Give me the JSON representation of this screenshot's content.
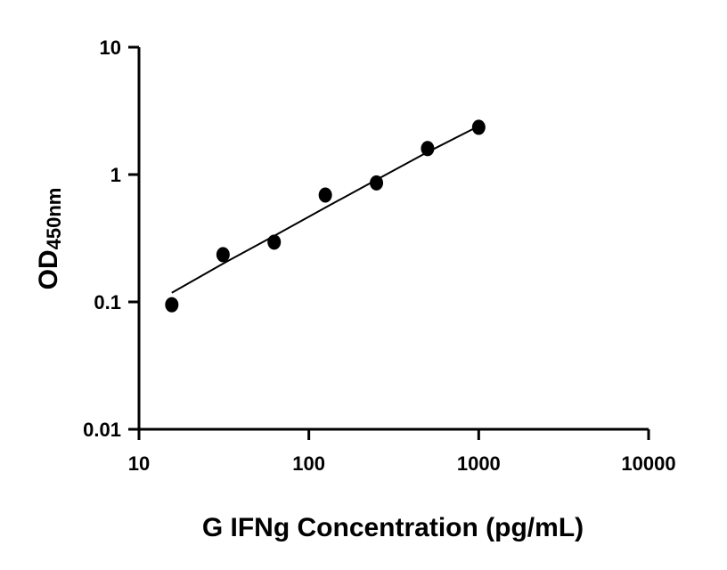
{
  "chart_data": {
    "type": "scatter",
    "title": "",
    "xlabel": "G IFNg Concentration (pg/mL)",
    "ylabel_main": "OD",
    "ylabel_sub": "450nm",
    "x_scale": "log",
    "y_scale": "log",
    "xlim": [
      10,
      10000
    ],
    "ylim": [
      0.01,
      10
    ],
    "x_ticks": [
      10,
      100,
      1000,
      10000
    ],
    "x_tick_labels": [
      "10",
      "100",
      "1000",
      "10000"
    ],
    "y_ticks": [
      0.01,
      0.1,
      1,
      10
    ],
    "y_tick_labels": [
      "0.01",
      "0.1",
      "1",
      "10"
    ],
    "grid": false,
    "series": [
      {
        "x": [
          15.6,
          31.25,
          62.5,
          125,
          250,
          500,
          1000
        ],
        "y": [
          0.095,
          0.235,
          0.295,
          0.69,
          0.86,
          1.6,
          2.35
        ]
      }
    ],
    "fit_curve": {
      "x": [
        15.6,
        31.25,
        62.5,
        125,
        250,
        500,
        1000
      ],
      "y": [
        0.118,
        0.2,
        0.33,
        0.55,
        0.91,
        1.5,
        2.4
      ]
    },
    "marker_color": "#000000",
    "line_color": "#000000"
  }
}
